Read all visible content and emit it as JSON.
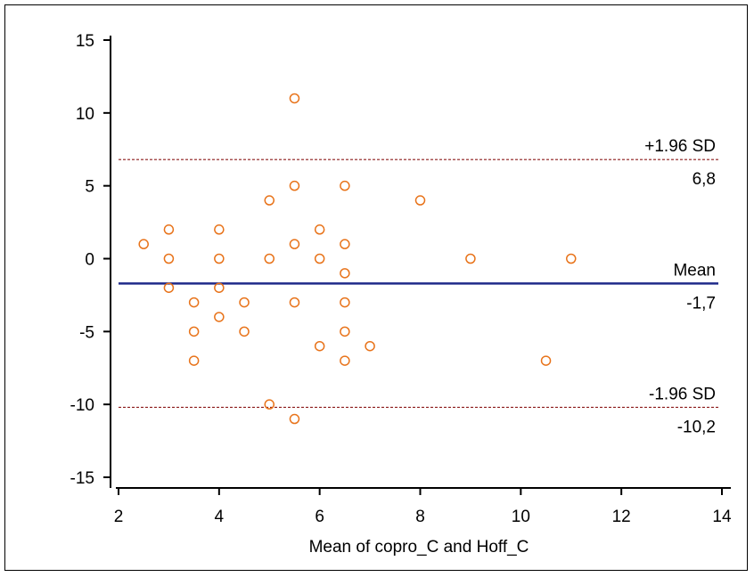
{
  "chart_data": {
    "type": "scatter",
    "title": "",
    "xlabel": "Mean of copro_C and Hoff_C",
    "ylabel": "",
    "xlim": [
      2,
      14
    ],
    "ylim": [
      -15,
      15
    ],
    "x_ticks": [
      "2",
      "4",
      "6",
      "8",
      "10",
      "12",
      "14"
    ],
    "y_ticks": [
      "15",
      "10",
      "5",
      "0",
      "-5",
      "-10",
      "-15"
    ],
    "x_tick_values": [
      2,
      4,
      6,
      8,
      10,
      12,
      14
    ],
    "y_tick_values": [
      15,
      10,
      5,
      0,
      -5,
      -10,
      -15
    ],
    "grid": false,
    "series": [
      {
        "marker": "open-circle",
        "color": "#e8731a",
        "points": [
          [
            5.5,
            11
          ],
          [
            5.5,
            5
          ],
          [
            6.5,
            5
          ],
          [
            5,
            4
          ],
          [
            8,
            4
          ],
          [
            3,
            2
          ],
          [
            4,
            2
          ],
          [
            6,
            2
          ],
          [
            2.5,
            1
          ],
          [
            5.5,
            1
          ],
          [
            6.5,
            1
          ],
          [
            3,
            0
          ],
          [
            4,
            0
          ],
          [
            5,
            0
          ],
          [
            6,
            0
          ],
          [
            9,
            0
          ],
          [
            11,
            0
          ],
          [
            6.5,
            -1
          ],
          [
            3,
            -2
          ],
          [
            4,
            -2
          ],
          [
            3.5,
            -3
          ],
          [
            4.5,
            -3
          ],
          [
            5.5,
            -3
          ],
          [
            6.5,
            -3
          ],
          [
            4,
            -4
          ],
          [
            3.5,
            -5
          ],
          [
            4.5,
            -5
          ],
          [
            6.5,
            -5
          ],
          [
            6,
            -6
          ],
          [
            7,
            -6
          ],
          [
            3.5,
            -7
          ],
          [
            6.5,
            -7
          ],
          [
            10.5,
            -7
          ],
          [
            5,
            -10
          ],
          [
            5.5,
            -11
          ]
        ]
      }
    ],
    "reference_lines": [
      {
        "name": "+1.96 SD",
        "value": 6.8,
        "value_label": "6,8",
        "style": "dashed",
        "color": "#8b1a1a"
      },
      {
        "name": "Mean",
        "value": -1.7,
        "value_label": "-1,7",
        "style": "solid",
        "color": "#1f2a8a"
      },
      {
        "name": "-1.96 SD",
        "value": -10.2,
        "value_label": "-10,2",
        "style": "dashed",
        "color": "#8b1a1a"
      }
    ]
  }
}
